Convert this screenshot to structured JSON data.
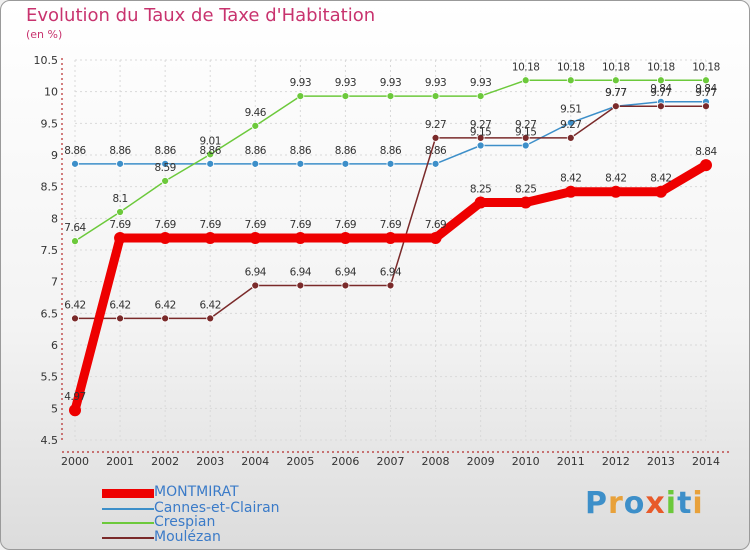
{
  "title": "Evolution du Taux de Taxe d'Habitation",
  "subtitle": "(en %)",
  "logo": "Proxiti",
  "chart_data": {
    "type": "line",
    "title": "Evolution du Taux de Taxe d'Habitation",
    "ylabel": "(en %)",
    "x": [
      "2000",
      "2001",
      "2002",
      "2003",
      "2004",
      "2005",
      "2006",
      "2007",
      "2008",
      "2009",
      "2010",
      "2011",
      "2012",
      "2013",
      "2014"
    ],
    "ylim": [
      4.5,
      10.5
    ],
    "yticks": [
      "4.5",
      "5",
      "5.5",
      "6",
      "6.5",
      "7",
      "7.5",
      "8",
      "8.5",
      "9",
      "9.5",
      "10",
      "10.5"
    ],
    "grid": true,
    "legend_position": "bottom-left",
    "series": [
      {
        "name": "Cannes-et-Clairan",
        "color": "#3d8fc9",
        "values": [
          8.86,
          8.86,
          8.86,
          8.86,
          8.86,
          8.86,
          8.86,
          8.86,
          8.86,
          9.15,
          9.15,
          9.51,
          9.77,
          9.84,
          9.84
        ],
        "labels": [
          "8.86",
          "8.86",
          "8.86",
          "8.86",
          "8.86",
          "8.86",
          "8.86",
          "8.86",
          "8.86",
          "9.15",
          "9.15",
          "9.51",
          "9.77",
          "9.84",
          "9.84"
        ]
      },
      {
        "name": "Crespian",
        "color": "#6cc93b",
        "values": [
          7.64,
          8.1,
          8.59,
          9.01,
          9.46,
          9.93,
          9.93,
          9.93,
          9.93,
          9.93,
          10.18,
          10.18,
          10.18,
          10.18,
          10.18
        ],
        "labels": [
          "7.64",
          "8.1",
          "8.59",
          "9.01",
          "9.46",
          "9.93",
          "9.93",
          "9.93",
          "9.93",
          "9.93",
          "10.18",
          "10.18",
          "10.18",
          "10.18",
          "10.18"
        ]
      },
      {
        "name": "Moulézan",
        "color": "#7a2a2a",
        "values": [
          6.42,
          6.42,
          6.42,
          6.42,
          6.94,
          6.94,
          6.94,
          6.94,
          9.27,
          9.27,
          9.27,
          9.27,
          9.77,
          9.77,
          9.77
        ],
        "labels": [
          "6.42",
          "6.42",
          "6.42",
          "6.42",
          "6.94",
          "6.94",
          "6.94",
          "6.94",
          "9.27",
          "9.27",
          "9.27",
          "9.27",
          "9.77",
          "9.77",
          "9.77"
        ]
      },
      {
        "name": "MONTMIRAT",
        "color": "#ee0000",
        "values": [
          4.97,
          7.69,
          7.69,
          7.69,
          7.69,
          7.69,
          7.69,
          7.69,
          7.69,
          8.25,
          8.25,
          8.42,
          8.42,
          8.42,
          8.84
        ],
        "labels": [
          "4.97",
          "7.69",
          "7.69",
          "7.69",
          "7.69",
          "7.69",
          "7.69",
          "7.69",
          "7.69",
          "8.25",
          "8.25",
          "8.42",
          "8.42",
          "8.42",
          "8.84"
        ]
      }
    ]
  },
  "legend": [
    {
      "label": "MONTMIRAT",
      "color": "#ee0000"
    },
    {
      "label": "Cannes-et-Clairan",
      "color": "#3d8fc9"
    },
    {
      "label": "Crespian",
      "color": "#6cc93b"
    },
    {
      "label": "Moulézan",
      "color": "#7a2a2a"
    }
  ]
}
